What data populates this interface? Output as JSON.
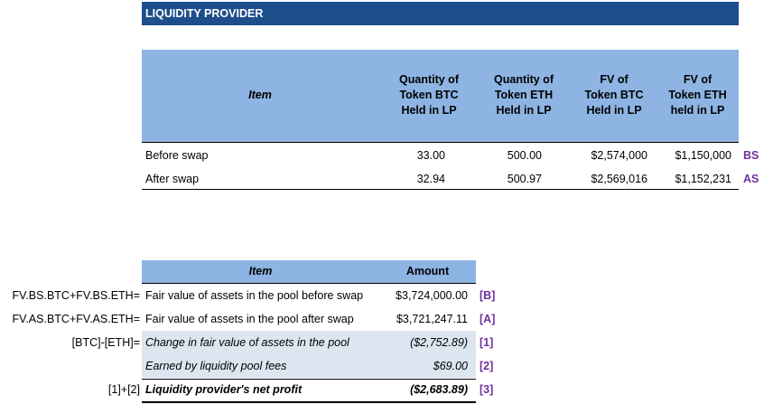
{
  "title": "LIQUIDITY PROVIDER",
  "table1": {
    "headers": [
      "Item",
      "Quantity of\nToken BTC\nHeld in LP",
      "Quantity of\nToken ETH\nHeld in LP",
      "FV of\nToken BTC\nHeld in LP",
      "FV of\nToken ETH\nheld in LP"
    ],
    "rows": [
      [
        "Before swap",
        "33.00",
        "500.00",
        "$2,574,000",
        "$1,150,000"
      ],
      [
        "After swap",
        "32.94",
        "500.97",
        "$2,569,016",
        "$1,152,231"
      ]
    ],
    "tags": [
      "BS",
      "AS"
    ]
  },
  "table2": {
    "headers": [
      "Item",
      "Amount"
    ],
    "rows": [
      {
        "formula": "FV.BS.BTC+FV.BS.ETH=",
        "item": "Fair value of assets in the pool before swap",
        "amount": "$3,724,000.00",
        "ref": "[B]"
      },
      {
        "formula": "FV.AS.BTC+FV.AS.ETH=",
        "item": "Fair value of assets in the pool after swap",
        "amount": "$3,721,247.11",
        "ref": "[A]"
      },
      {
        "formula": "[BTC]-[ETH]=",
        "item": "Change in fair value of assets in the pool",
        "amount": "($2,752.89)",
        "ref": "[1]"
      },
      {
        "formula": null,
        "item": "Earned by liquidity pool fees",
        "amount": "$69.00",
        "ref": "[2]"
      },
      {
        "formula": "[1]+[2]",
        "item": "Liquidity provider's net profit",
        "amount": "($2,683.89)",
        "ref": "[3]"
      }
    ]
  }
}
